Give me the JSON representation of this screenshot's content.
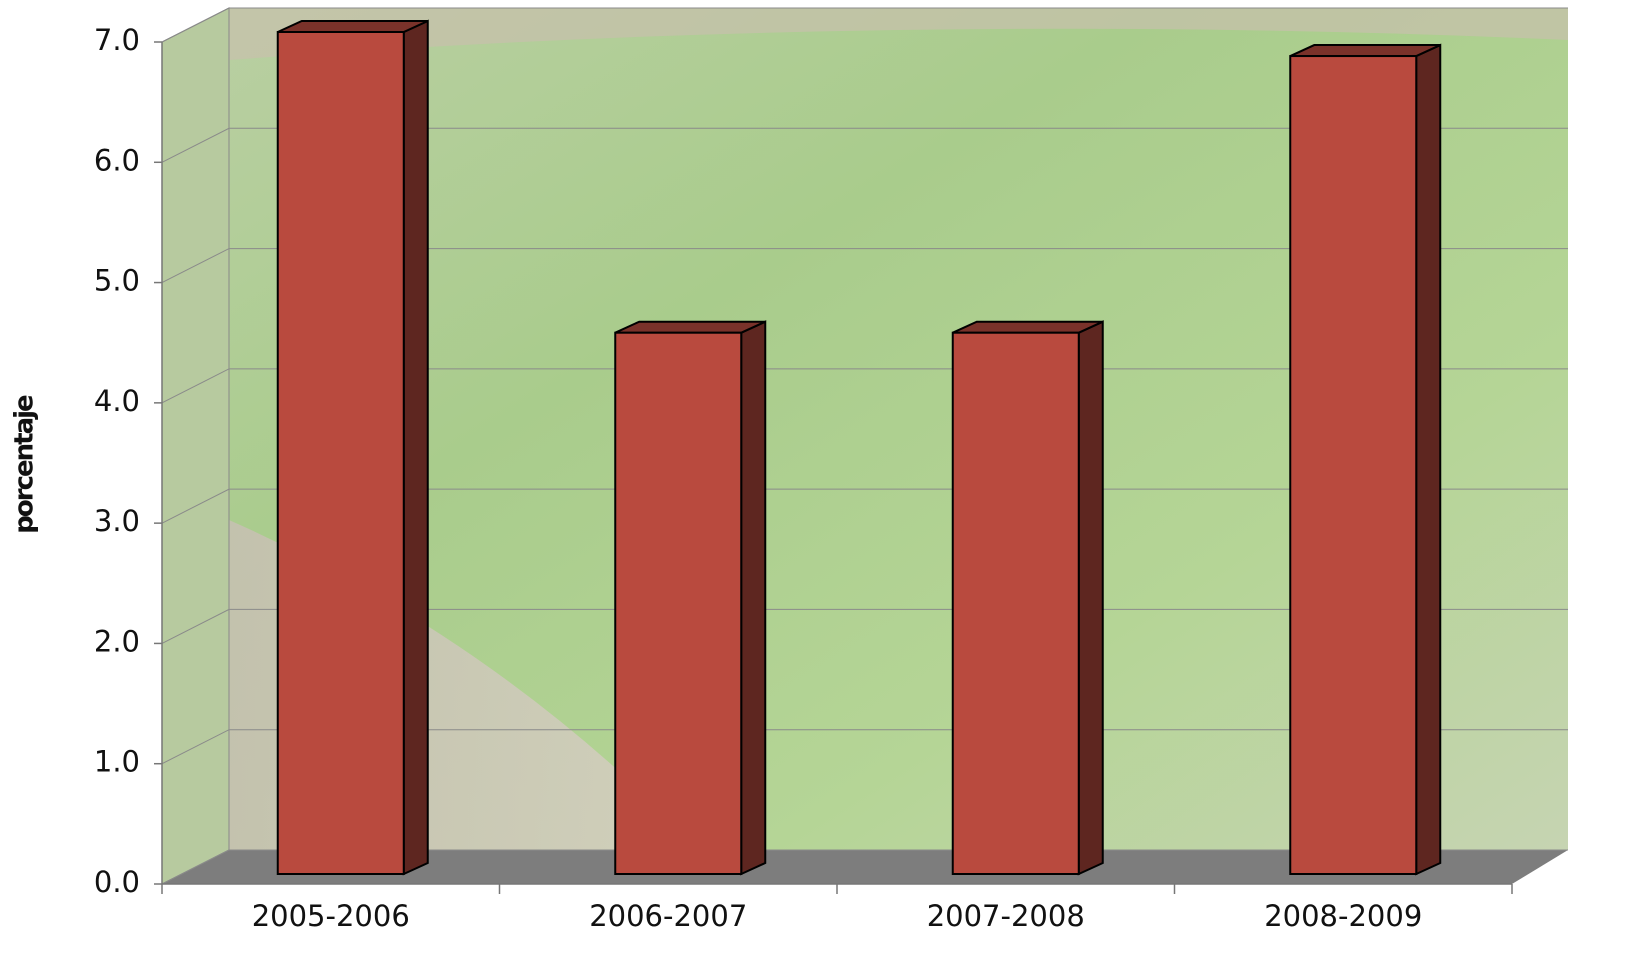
{
  "chart_data": {
    "type": "bar3d",
    "y_label": "porcentaje",
    "categories": [
      "2005-2006",
      "2006-2007",
      "2007-2008",
      "2008-2009"
    ],
    "values": [
      7.0,
      4.5,
      4.5,
      6.8
    ],
    "color": "#b94a3e",
    "ylim": [
      0,
      7
    ],
    "yticks": [
      {
        "value": 0,
        "label": "0.0"
      },
      {
        "value": 1,
        "label": "1.0"
      },
      {
        "value": 2,
        "label": "2.0"
      },
      {
        "value": 3,
        "label": "3.0"
      },
      {
        "value": 4,
        "label": "4.0"
      },
      {
        "value": 5,
        "label": "5.0"
      },
      {
        "value": 6,
        "label": "6.0"
      },
      {
        "value": 7,
        "label": "7.0"
      }
    ],
    "grid": true
  }
}
